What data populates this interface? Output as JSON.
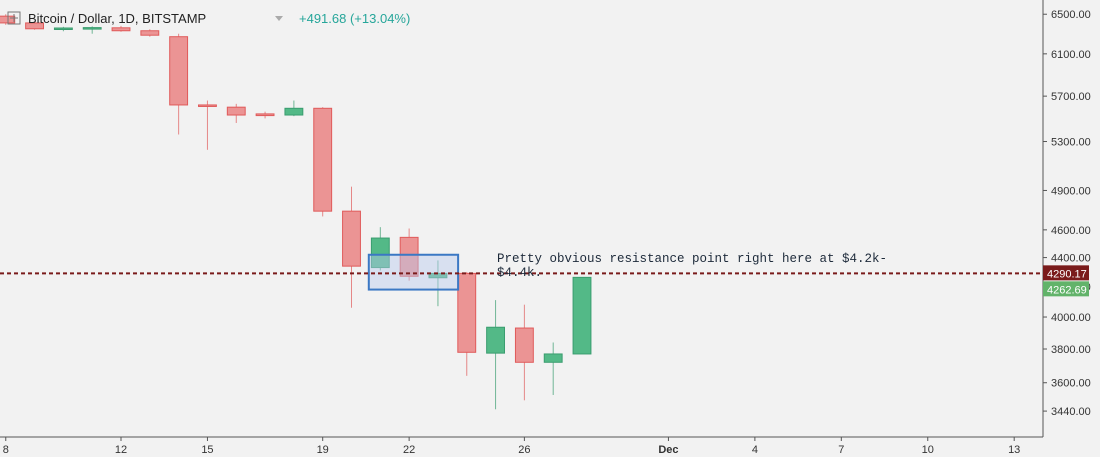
{
  "header": {
    "title": "Bitcoin / Dollar, 1D, BITSTAMP",
    "change": "+491.68 (+13.04%)",
    "expand_icon": "expand-icon",
    "dropdown_icon": "chevron-down-icon"
  },
  "colors": {
    "up": "#53b987",
    "up_border": "#3a9d6f",
    "down": "#eb9494",
    "down_border": "#e05a5a",
    "resistance_line": "#7a1b1b",
    "box_border": "#3b78c4",
    "box_fill": "#b8c9ee",
    "current_tag": "#7a1b1b",
    "last_tag": "#62b36a"
  },
  "annotation": {
    "line1": "Pretty obvious resistance point right here at $4.2k-",
    "line2": "$4.4k."
  },
  "price_tags": {
    "resistance": "4290.17",
    "last": "4262.69"
  },
  "chart_data": {
    "type": "candlestick",
    "title": "Bitcoin / Dollar, 1D, BITSTAMP",
    "xlabel": "",
    "ylabel": "",
    "x_range": [
      7.8,
      44.0
    ],
    "ylim": [
      3300,
      6650
    ],
    "y_scale": "log",
    "y_ticks": [
      3440,
      3600,
      3800,
      4000,
      4200,
      4400,
      4600,
      4900,
      5300,
      5700,
      6100,
      6500
    ],
    "y_tick_labels": [
      "3440.00",
      "3600.00",
      "3800.00",
      "4000.00",
      "4200.00",
      "4400.00",
      "4600.00",
      "4900.00",
      "5300.00",
      "5700.00",
      "6100.00",
      "6500.00"
    ],
    "x_ticks": [
      {
        "day": 8,
        "label": "8"
      },
      {
        "day": 12,
        "label": "12"
      },
      {
        "day": 15,
        "label": "15"
      },
      {
        "day": 19,
        "label": "19"
      },
      {
        "day": 22,
        "label": "22"
      },
      {
        "day": 26,
        "label": "26"
      },
      {
        "day": 31,
        "label": "Dec"
      },
      {
        "day": 34,
        "label": "4"
      },
      {
        "day": 37,
        "label": "7"
      },
      {
        "day": 40,
        "label": "10"
      },
      {
        "day": 43,
        "label": "13"
      }
    ],
    "candles": [
      {
        "day": 8,
        "open": 6480,
        "high": 6500,
        "low": 6390,
        "close": 6410
      },
      {
        "day": 9,
        "open": 6410,
        "high": 6420,
        "low": 6340,
        "close": 6350
      },
      {
        "day": 10,
        "open": 6345,
        "high": 6370,
        "low": 6325,
        "close": 6358
      },
      {
        "day": 11,
        "open": 6355,
        "high": 6375,
        "low": 6300,
        "close": 6362
      },
      {
        "day": 12,
        "open": 6360,
        "high": 6380,
        "low": 6320,
        "close": 6330
      },
      {
        "day": 13,
        "open": 6330,
        "high": 6345,
        "low": 6270,
        "close": 6285
      },
      {
        "day": 14,
        "open": 6270,
        "high": 6300,
        "low": 5360,
        "close": 5620
      },
      {
        "day": 15,
        "open": 5620,
        "high": 5660,
        "low": 5230,
        "close": 5610
      },
      {
        "day": 16,
        "open": 5600,
        "high": 5630,
        "low": 5460,
        "close": 5530
      },
      {
        "day": 17,
        "open": 5540,
        "high": 5560,
        "low": 5500,
        "close": 5525
      },
      {
        "day": 18,
        "open": 5530,
        "high": 5660,
        "low": 5520,
        "close": 5590
      },
      {
        "day": 19,
        "open": 5590,
        "high": 5600,
        "low": 4700,
        "close": 4740
      },
      {
        "day": 20,
        "open": 4740,
        "high": 4930,
        "low": 4060,
        "close": 4340
      },
      {
        "day": 21,
        "open": 4330,
        "high": 4620,
        "low": 4310,
        "close": 4540
      },
      {
        "day": 22,
        "open": 4545,
        "high": 4610,
        "low": 4240,
        "close": 4270
      },
      {
        "day": 23,
        "open": 4260,
        "high": 4380,
        "low": 4070,
        "close": 4290
      },
      {
        "day": 24,
        "open": 4290,
        "high": 4300,
        "low": 3640,
        "close": 3780
      },
      {
        "day": 25,
        "open": 3775,
        "high": 4110,
        "low": 3450,
        "close": 3935
      },
      {
        "day": 26,
        "open": 3930,
        "high": 4080,
        "low": 3500,
        "close": 3720
      },
      {
        "day": 27,
        "open": 3720,
        "high": 3840,
        "low": 3530,
        "close": 3770
      },
      {
        "day": 28,
        "open": 3770,
        "high": 4262.69,
        "low": 3770,
        "close": 4262.69
      }
    ],
    "resistance_level": 4290.17,
    "last_price": 4262.69,
    "highlight_zone": {
      "day_start": 20.6,
      "day_end": 23.7,
      "price_low": 4180,
      "price_high": 4420
    }
  }
}
